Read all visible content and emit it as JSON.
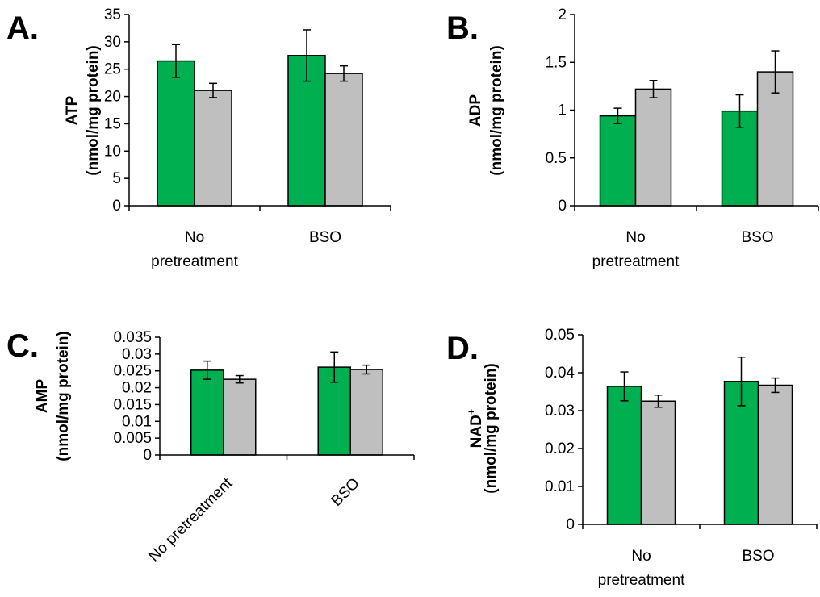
{
  "colors": {
    "series1": "#00b050",
    "series2": "#bfbfbf",
    "outline": "#000000"
  },
  "chart_data": [
    {
      "panel": "A.",
      "type": "bar",
      "ylabel_line1": "ATP",
      "ylabel_line2": "(nmol/mg protein)",
      "categories": [
        "No pretreatment",
        "BSO"
      ],
      "category_lines": [
        [
          "No",
          "pretreatment"
        ],
        [
          "BSO"
        ]
      ],
      "ylim": [
        0,
        35
      ],
      "yticks": [
        "0",
        "5",
        "10",
        "15",
        "20",
        "25",
        "30",
        "35"
      ],
      "ytick_values": [
        0,
        5,
        10,
        15,
        20,
        25,
        30,
        35
      ],
      "series": [
        {
          "values": [
            26.5,
            27.5
          ],
          "errors": [
            3.0,
            4.7
          ],
          "color": "#00b050"
        },
        {
          "values": [
            21.1,
            24.2
          ],
          "errors": [
            1.3,
            1.4
          ],
          "color": "#bfbfbf"
        }
      ],
      "grid": false
    },
    {
      "panel": "B.",
      "type": "bar",
      "ylabel_line1": "ADP",
      "ylabel_line2": "(nmol/mg protein)",
      "categories": [
        "No pretreatment",
        "BSO"
      ],
      "category_lines": [
        [
          "No",
          "pretreatment"
        ],
        [
          "BSO"
        ]
      ],
      "ylim": [
        0,
        2
      ],
      "yticks": [
        "0",
        "0.5",
        "1",
        "1.5",
        "2"
      ],
      "ytick_values": [
        0,
        0.5,
        1,
        1.5,
        2
      ],
      "series": [
        {
          "values": [
            0.94,
            0.99
          ],
          "errors": [
            0.08,
            0.17
          ],
          "color": "#00b050"
        },
        {
          "values": [
            1.22,
            1.4
          ],
          "errors": [
            0.09,
            0.22
          ],
          "color": "#bfbfbf"
        }
      ],
      "grid": false
    },
    {
      "panel": "C.",
      "type": "bar",
      "ylabel_line1": "AMP",
      "ylabel_line2": "(nmol/mg protein)",
      "categories": [
        "No pretreatment",
        "BSO"
      ],
      "category_lines": [
        [
          "No pretreatment"
        ],
        [
          "BSO"
        ]
      ],
      "rotated_labels": true,
      "ylim": [
        0,
        0.035
      ],
      "yticks": [
        "0",
        "0.005",
        "0.01",
        "0.015",
        "0.02",
        "0.025",
        "0.03",
        "0.035"
      ],
      "ytick_values": [
        0,
        0.005,
        0.01,
        0.015,
        0.02,
        0.025,
        0.03,
        0.035
      ],
      "series": [
        {
          "values": [
            0.0252,
            0.0261
          ],
          "errors": [
            0.0027,
            0.0045
          ],
          "color": "#00b050"
        },
        {
          "values": [
            0.0225,
            0.0254
          ],
          "errors": [
            0.0011,
            0.0013
          ],
          "color": "#bfbfbf"
        }
      ],
      "grid": false
    },
    {
      "panel": "D.",
      "type": "bar",
      "ylabel_line1": "NAD",
      "ylabel_sup": "+",
      "ylabel_line2": "(nmol/mg protein)",
      "categories": [
        "No pretreatment",
        "BSO"
      ],
      "category_lines": [
        [
          "No",
          "pretreatment"
        ],
        [
          "BSO"
        ]
      ],
      "ylim": [
        0,
        0.05
      ],
      "yticks": [
        "0",
        "0.01",
        "0.02",
        "0.03",
        "0.04",
        "0.05"
      ],
      "ytick_values": [
        0,
        0.01,
        0.02,
        0.03,
        0.04,
        0.05
      ],
      "series": [
        {
          "values": [
            0.0364,
            0.0377
          ],
          "errors": [
            0.0038,
            0.0064
          ],
          "color": "#00b050"
        },
        {
          "values": [
            0.0325,
            0.0367
          ],
          "errors": [
            0.0016,
            0.0019
          ],
          "color": "#bfbfbf"
        }
      ],
      "grid": false
    }
  ]
}
